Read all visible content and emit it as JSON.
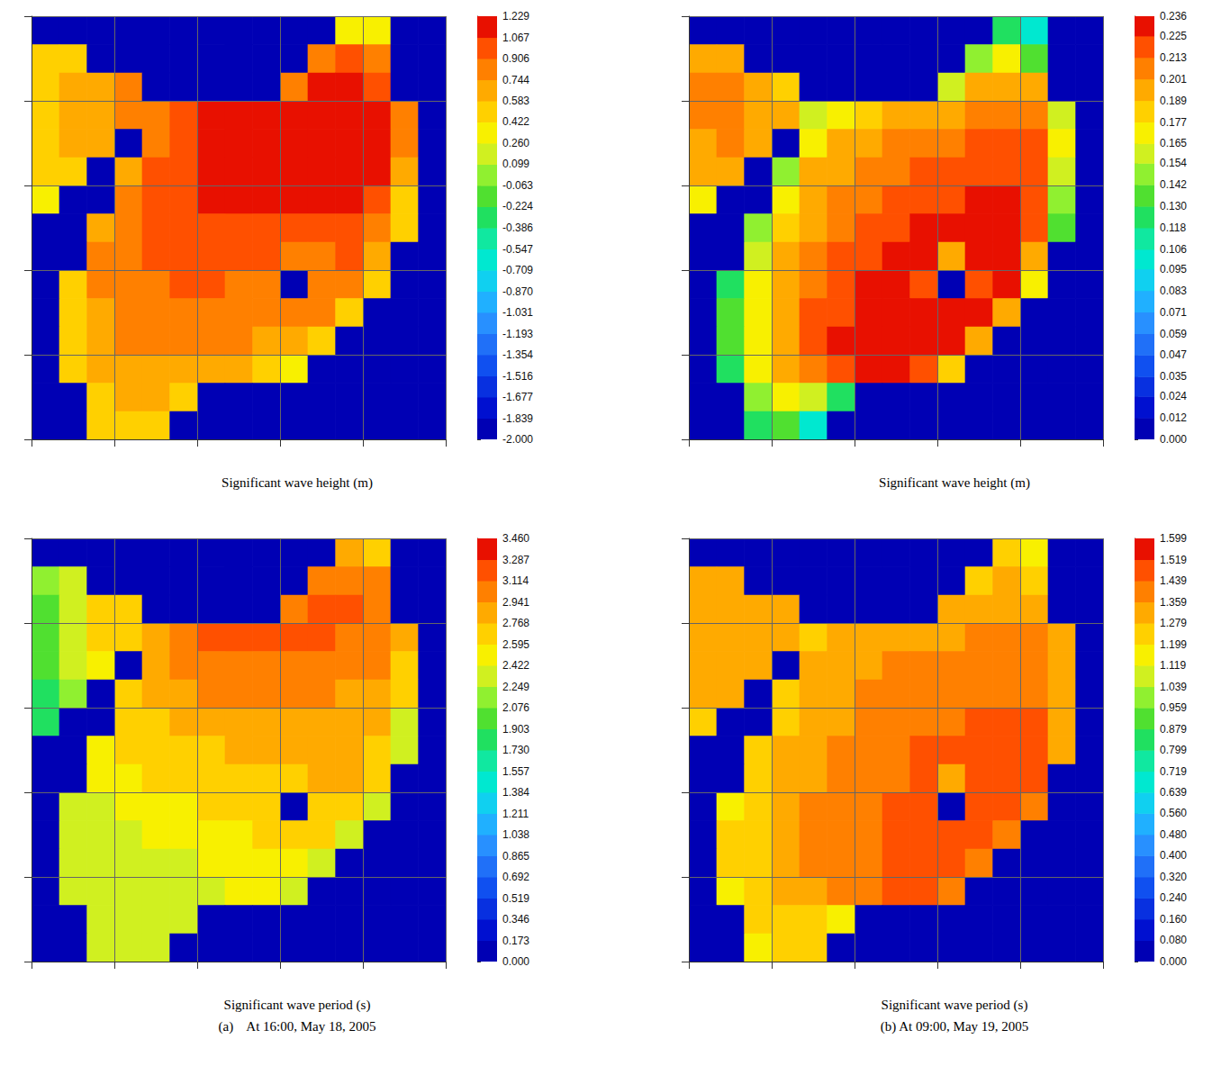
{
  "chart_data": [
    {
      "type": "heatmap",
      "title": "Significant wave height (m)",
      "xlim": [
        0,
        15
      ],
      "ylim": [
        0,
        15
      ],
      "xticks": [
        0,
        3,
        6,
        9,
        12,
        15
      ],
      "yticks": [
        0,
        3,
        6,
        9,
        12,
        15
      ],
      "grid": true,
      "tick_labels": false,
      "colorbar_range": [
        -2,
        1.229
      ],
      "colorbar_ticks": [
        {
          "value": -2,
          "label": "-2.000"
        },
        -1.839,
        -1.677,
        -1.516,
        -1.354,
        -1.193,
        -1.031,
        {
          "value": -0.87,
          "label": "-0.870"
        },
        -0.709,
        -0.547,
        -0.386,
        -0.224,
        -0.063,
        0.099,
        {
          "value": 0.26,
          "label": "0.260"
        },
        0.422,
        0.583,
        0.744,
        0.906,
        1.067,
        1.229
      ],
      "cells": [
        [
          -2,
          -2,
          -2,
          -2,
          -2,
          -2,
          -2,
          -2,
          -2,
          -2,
          -2,
          0.4,
          0.35,
          -2,
          -2
        ],
        [
          0.45,
          0.55,
          -2,
          -2,
          -2,
          -2,
          -2,
          -2,
          -2,
          -2,
          0.75,
          0.95,
          0.8,
          -2,
          -2
        ],
        [
          0.5,
          0.62,
          0.7,
          0.75,
          -2,
          -2,
          -2,
          -2,
          -2,
          0.9,
          1.1,
          1.15,
          1.05,
          -2,
          -2
        ],
        [
          0.5,
          0.62,
          0.7,
          0.8,
          0.85,
          0.95,
          1.08,
          1.12,
          1.14,
          1.16,
          1.18,
          1.17,
          1.12,
          0.75,
          -2
        ],
        [
          0.48,
          0.6,
          0.65,
          -2,
          0.85,
          1,
          1.1,
          1.15,
          1.18,
          1.2,
          1.2,
          1.18,
          1.12,
          0.8,
          -2
        ],
        [
          0.45,
          0.55,
          -2,
          0.7,
          0.92,
          1.05,
          1.12,
          1.16,
          1.19,
          1.2,
          1.19,
          1.15,
          1.08,
          0.7,
          -2
        ],
        [
          0.4,
          -2,
          -2,
          0.78,
          0.95,
          1.05,
          1.1,
          1.13,
          1.15,
          1.14,
          1.12,
          1.08,
          1,
          0.55,
          -2
        ],
        [
          -2,
          -2,
          0.7,
          0.88,
          0.98,
          1.02,
          1.05,
          1.06,
          1.05,
          1.03,
          1,
          0.98,
          0.9,
          0.5,
          -2
        ],
        [
          -2,
          -2,
          0.75,
          0.88,
          0.95,
          0.98,
          0.99,
          0.98,
          0.95,
          0.85,
          0.9,
          0.92,
          0.7,
          -2,
          -2
        ],
        [
          -2,
          0.55,
          0.75,
          0.85,
          0.9,
          0.92,
          0.92,
          0.9,
          0.8,
          -2,
          0.75,
          0.85,
          0.55,
          -2,
          -2
        ],
        [
          -2,
          0.55,
          0.72,
          0.8,
          0.85,
          0.86,
          0.86,
          0.85,
          0.82,
          0.78,
          0.75,
          0.5,
          -2,
          -2,
          -2
        ],
        [
          -2,
          0.5,
          0.68,
          0.75,
          0.78,
          0.78,
          0.78,
          0.75,
          0.72,
          0.65,
          0.45,
          -2,
          -2,
          -2,
          -2
        ],
        [
          -2,
          0.45,
          0.62,
          0.68,
          0.7,
          0.7,
          0.68,
          0.62,
          0.55,
          0.4,
          -2,
          -2,
          -2,
          -2,
          -2
        ],
        [
          -2,
          -2,
          0.58,
          0.62,
          0.6,
          0.5,
          -2,
          -2,
          -2,
          -2,
          -2,
          -2,
          -2,
          -2,
          -2
        ],
        [
          -2,
          -2,
          0.55,
          0.58,
          0.55,
          -2,
          -2,
          -2,
          -2,
          -2,
          -2,
          -2,
          -2,
          -2,
          -2
        ]
      ]
    },
    {
      "type": "heatmap",
      "title": "Significant wave height (m)",
      "xlim": [
        0,
        15
      ],
      "ylim": [
        0,
        15
      ],
      "xticks": [
        0,
        3,
        6,
        9,
        12,
        15
      ],
      "yticks": [
        0,
        3,
        6,
        9,
        12,
        15
      ],
      "grid": true,
      "tick_labels": false,
      "colorbar_range": [
        0,
        0.236
      ],
      "colorbar_ticks": [
        {
          "value": 0,
          "label": "0.000"
        },
        0.012,
        0.024,
        0.035,
        0.047,
        0.059,
        0.071,
        0.083,
        0.095,
        0.106,
        0.118,
        {
          "value": 0.13,
          "label": "0.130"
        },
        0.142,
        0.154,
        0.165,
        0.177,
        0.189,
        0.201,
        0.213,
        0.225,
        0.236
      ],
      "cells": [
        [
          0,
          0,
          0,
          0,
          0,
          0,
          0,
          0,
          0,
          0,
          0,
          0.12,
          0.1,
          0,
          0
        ],
        [
          0.19,
          0.2,
          0,
          0,
          0,
          0,
          0,
          0,
          0,
          0,
          0.15,
          0.17,
          0.14,
          0,
          0
        ],
        [
          0.21,
          0.21,
          0.2,
          0.18,
          0,
          0,
          0,
          0,
          0,
          0.16,
          0.19,
          0.2,
          0.19,
          0,
          0
        ],
        [
          0.21,
          0.21,
          0.2,
          0.19,
          0.16,
          0.17,
          0.18,
          0.19,
          0.195,
          0.2,
          0.205,
          0.21,
          0.205,
          0.16,
          0
        ],
        [
          0.2,
          0.21,
          0.19,
          0,
          0.17,
          0.19,
          0.2,
          0.205,
          0.21,
          0.212,
          0.215,
          0.218,
          0.215,
          0.17,
          0
        ],
        [
          0.19,
          0.19,
          0,
          0.15,
          0.19,
          0.2,
          0.205,
          0.21,
          0.215,
          0.218,
          0.22,
          0.222,
          0.218,
          0.16,
          0
        ],
        [
          0.17,
          0,
          0,
          0.17,
          0.195,
          0.205,
          0.21,
          0.215,
          0.22,
          0.223,
          0.226,
          0.226,
          0.22,
          0.15,
          0
        ],
        [
          0,
          0,
          0.15,
          0.185,
          0.2,
          0.21,
          0.215,
          0.22,
          0.225,
          0.228,
          0.228,
          0.228,
          0.22,
          0.14,
          0
        ],
        [
          0,
          0,
          0.16,
          0.19,
          0.205,
          0.213,
          0.22,
          0.226,
          0.23,
          0.2,
          0.228,
          0.23,
          0.19,
          0,
          0
        ],
        [
          0,
          0.12,
          0.17,
          0.195,
          0.21,
          0.218,
          0.225,
          0.23,
          0.22,
          0,
          0.215,
          0.23,
          0.17,
          0,
          0
        ],
        [
          0,
          0.13,
          0.175,
          0.2,
          0.213,
          0.222,
          0.228,
          0.232,
          0.232,
          0.23,
          0.228,
          0.19,
          0,
          0,
          0
        ],
        [
          0,
          0.13,
          0.175,
          0.2,
          0.215,
          0.225,
          0.23,
          0.232,
          0.232,
          0.228,
          0.19,
          0,
          0,
          0,
          0
        ],
        [
          0,
          0.12,
          0.17,
          0.195,
          0.21,
          0.22,
          0.225,
          0.225,
          0.215,
          0.18,
          0,
          0,
          0,
          0,
          0
        ],
        [
          0,
          0,
          0.15,
          0.17,
          0.16,
          0.12,
          0,
          0,
          0,
          0,
          0,
          0,
          0,
          0,
          0
        ],
        [
          0,
          0,
          0.12,
          0.14,
          0.1,
          0,
          0,
          0,
          0,
          0,
          0,
          0,
          0,
          0,
          0
        ]
      ]
    },
    {
      "type": "heatmap",
      "title": "Significant wave period (s)",
      "subtitle": "(a)    At 16:00, May 18, 2005",
      "xlim": [
        0,
        15
      ],
      "ylim": [
        0,
        15
      ],
      "xticks": [
        0,
        3,
        6,
        9,
        12,
        15
      ],
      "yticks": [
        0,
        3,
        6,
        9,
        12,
        15
      ],
      "grid": true,
      "tick_labels": false,
      "colorbar_range": [
        0,
        3.46
      ],
      "colorbar_ticks": [
        {
          "value": 0,
          "label": "0.000"
        },
        0.173,
        0.346,
        0.519,
        0.692,
        0.865,
        1.038,
        1.211,
        1.384,
        1.557,
        {
          "value": 1.73,
          "label": "1.730"
        },
        1.903,
        2.076,
        2.249,
        2.422,
        2.595,
        2.768,
        2.941,
        3.114,
        3.287,
        {
          "value": 3.46,
          "label": "3.460"
        }
      ],
      "cells": [
        [
          0,
          0,
          0,
          0,
          0,
          0,
          0,
          0,
          0,
          0,
          0,
          2.8,
          2.7,
          0,
          0
        ],
        [
          2.1,
          2.4,
          0,
          0,
          0,
          0,
          0,
          0,
          0,
          0,
          3,
          3.1,
          2.95,
          0,
          0
        ],
        [
          2.05,
          2.4,
          2.6,
          2.75,
          0,
          0,
          0,
          0,
          0,
          3.05,
          3.15,
          3.15,
          3.05,
          0,
          0
        ],
        [
          2,
          2.35,
          2.6,
          2.75,
          2.9,
          3.05,
          3.15,
          3.2,
          3.2,
          3.18,
          3.12,
          3.08,
          3.02,
          2.8,
          0
        ],
        [
          1.95,
          2.3,
          2.5,
          0,
          2.85,
          2.95,
          3.05,
          3.08,
          3.08,
          3.05,
          3.02,
          3,
          2.95,
          2.75,
          0
        ],
        [
          1.9,
          2.2,
          0,
          2.6,
          2.8,
          2.88,
          2.95,
          2.98,
          2.98,
          2.97,
          2.95,
          2.92,
          2.88,
          2.6,
          0
        ],
        [
          1.8,
          0,
          0,
          2.65,
          2.75,
          2.8,
          2.85,
          2.88,
          2.9,
          2.9,
          2.88,
          2.85,
          2.8,
          2.4,
          0
        ],
        [
          0,
          0,
          2.5,
          2.62,
          2.68,
          2.72,
          2.76,
          2.8,
          2.83,
          2.85,
          2.85,
          2.82,
          2.75,
          2.3,
          0
        ],
        [
          0,
          0,
          2.45,
          2.55,
          2.6,
          2.64,
          2.68,
          2.72,
          2.76,
          2.6,
          2.8,
          2.78,
          2.6,
          0,
          0
        ],
        [
          0,
          2.3,
          2.42,
          2.48,
          2.52,
          2.56,
          2.6,
          2.66,
          2.62,
          0,
          2.7,
          2.7,
          2.4,
          0,
          0
        ],
        [
          0,
          2.3,
          2.38,
          2.42,
          2.45,
          2.48,
          2.52,
          2.58,
          2.62,
          2.62,
          2.62,
          2.4,
          0,
          0,
          0
        ],
        [
          0,
          2.28,
          2.34,
          2.37,
          2.4,
          2.42,
          2.46,
          2.5,
          2.54,
          2.55,
          2.4,
          0,
          0,
          0,
          0
        ],
        [
          0,
          2.25,
          2.3,
          2.33,
          2.35,
          2.38,
          2.4,
          2.44,
          2.46,
          2.35,
          0,
          0,
          0,
          0,
          0
        ],
        [
          0,
          0,
          2.28,
          2.3,
          2.3,
          2.25,
          0,
          0,
          0,
          0,
          0,
          0,
          0,
          0,
          0
        ],
        [
          0,
          0,
          2.26,
          2.28,
          2.27,
          0,
          0,
          0,
          0,
          0,
          0,
          0,
          0,
          0,
          0
        ]
      ]
    },
    {
      "type": "heatmap",
      "title": "Significant wave period (s)",
      "subtitle": "(b) At 09:00, May 19, 2005",
      "xlim": [
        0,
        15
      ],
      "ylim": [
        0,
        15
      ],
      "xticks": [
        0,
        3,
        6,
        9,
        12,
        15
      ],
      "yticks": [
        0,
        3,
        6,
        9,
        12,
        15
      ],
      "grid": true,
      "tick_labels": false,
      "colorbar_range": [
        0,
        1.599
      ],
      "colorbar_ticks": [
        {
          "value": 0,
          "label": "0.000"
        },
        {
          "value": 0.08,
          "label": "0.080"
        },
        {
          "value": 0.16,
          "label": "0.160"
        },
        {
          "value": 0.24,
          "label": "0.240"
        },
        {
          "value": 0.32,
          "label": "0.320"
        },
        {
          "value": 0.4,
          "label": "0.400"
        },
        {
          "value": 0.48,
          "label": "0.480"
        },
        {
          "value": 0.56,
          "label": "0.560"
        },
        0.639,
        0.719,
        0.799,
        0.879,
        0.959,
        1.039,
        1.119,
        1.199,
        1.279,
        1.359,
        1.439,
        1.519,
        1.599
      ],
      "cells": [
        [
          0,
          0,
          0,
          0,
          0,
          0,
          0,
          0,
          0,
          0,
          0,
          1.2,
          1.15,
          0,
          0
        ],
        [
          1.3,
          1.32,
          0,
          0,
          0,
          0,
          0,
          0,
          0,
          0,
          1.25,
          1.28,
          1.25,
          0,
          0
        ],
        [
          1.33,
          1.34,
          1.32,
          1.3,
          0,
          0,
          0,
          0,
          0,
          1.28,
          1.32,
          1.34,
          1.33,
          0,
          0
        ],
        [
          1.34,
          1.35,
          1.33,
          1.3,
          1.25,
          1.28,
          1.31,
          1.33,
          1.34,
          1.35,
          1.37,
          1.38,
          1.38,
          1.3,
          0
        ],
        [
          1.33,
          1.34,
          1.3,
          0,
          1.28,
          1.31,
          1.34,
          1.36,
          1.37,
          1.38,
          1.4,
          1.41,
          1.41,
          1.32,
          0
        ],
        [
          1.3,
          1.3,
          0,
          1.22,
          1.3,
          1.33,
          1.36,
          1.38,
          1.39,
          1.41,
          1.42,
          1.43,
          1.43,
          1.33,
          0
        ],
        [
          1.25,
          0,
          0,
          1.26,
          1.32,
          1.35,
          1.38,
          1.4,
          1.42,
          1.43,
          1.45,
          1.46,
          1.45,
          1.35,
          0
        ],
        [
          0,
          0,
          1.22,
          1.28,
          1.33,
          1.37,
          1.4,
          1.42,
          1.44,
          1.45,
          1.47,
          1.48,
          1.46,
          1.32,
          0
        ],
        [
          0,
          0,
          1.24,
          1.3,
          1.35,
          1.38,
          1.41,
          1.43,
          1.45,
          1.35,
          1.48,
          1.5,
          1.44,
          0,
          0
        ],
        [
          0,
          1.18,
          1.26,
          1.32,
          1.36,
          1.39,
          1.42,
          1.45,
          1.44,
          0,
          1.44,
          1.5,
          1.4,
          0,
          0
        ],
        [
          0,
          1.2,
          1.27,
          1.32,
          1.36,
          1.4,
          1.43,
          1.46,
          1.48,
          1.49,
          1.5,
          1.42,
          0,
          0,
          0
        ],
        [
          0,
          1.2,
          1.27,
          1.32,
          1.36,
          1.4,
          1.43,
          1.46,
          1.48,
          1.48,
          1.4,
          0,
          0,
          0,
          0
        ],
        [
          0,
          1.18,
          1.25,
          1.3,
          1.35,
          1.38,
          1.42,
          1.44,
          1.45,
          1.38,
          0,
          0,
          0,
          0,
          0
        ],
        [
          0,
          0,
          1.22,
          1.25,
          1.24,
          1.15,
          0,
          0,
          0,
          0,
          0,
          0,
          0,
          0,
          0
        ],
        [
          0,
          0,
          1.18,
          1.22,
          1.2,
          0,
          0,
          0,
          0,
          0,
          0,
          0,
          0,
          0,
          0
        ]
      ]
    }
  ]
}
